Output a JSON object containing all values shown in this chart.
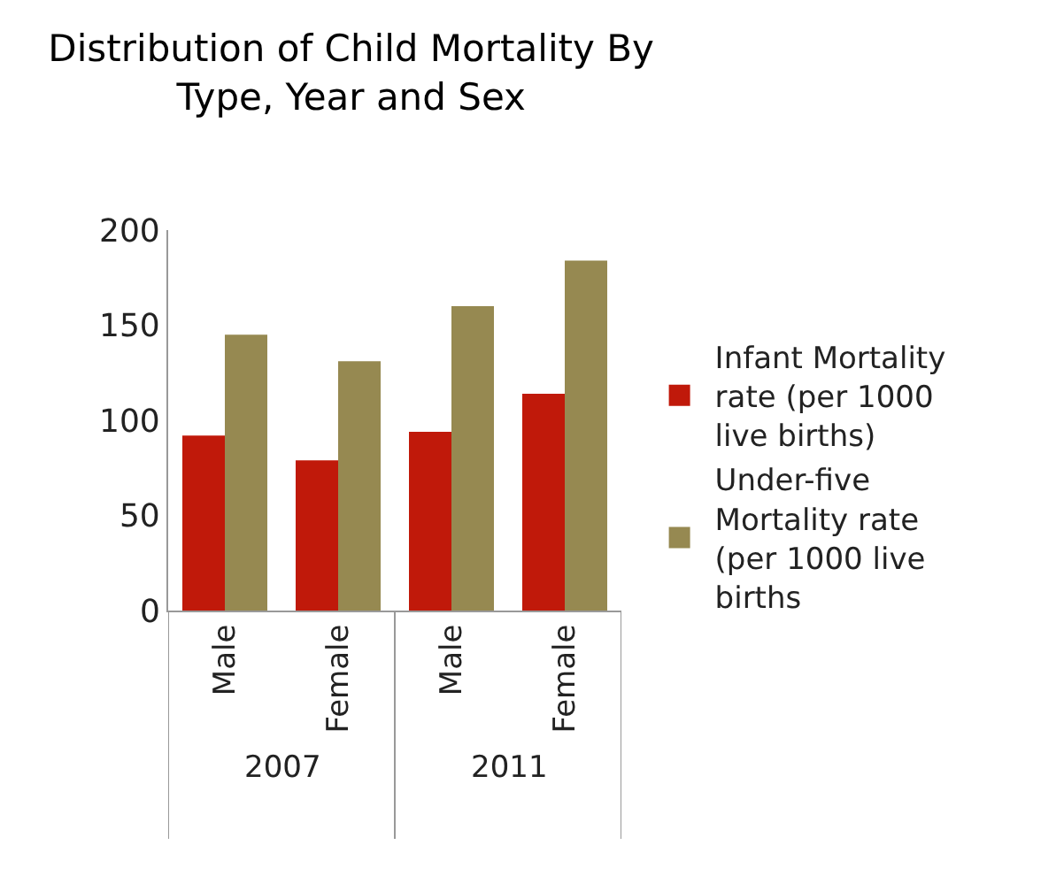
{
  "chart_data": {
    "type": "bar",
    "title": "Distribution of Child Mortality By Type, Year and Sex",
    "categories": [
      "Male",
      "Female",
      "Male",
      "Female"
    ],
    "annotations": [
      "2007",
      "2011"
    ],
    "series": [
      {
        "name": "Infant Mortality rate (per 1000 live births)",
        "color": "#c0190a",
        "values": [
          92,
          79,
          94,
          114
        ]
      },
      {
        "name": "Under-five Mortality rate (per 1000 live births",
        "color": "#968951",
        "values": [
          145,
          131,
          160,
          184
        ]
      }
    ],
    "ylim": [
      0,
      200
    ],
    "yticks": [
      0,
      50,
      100,
      150,
      200
    ],
    "grid": false,
    "legend": "right"
  }
}
